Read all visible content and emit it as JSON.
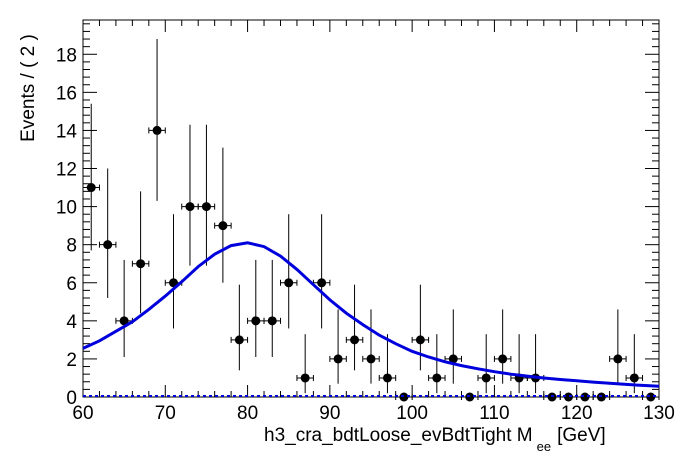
{
  "chart_data": {
    "type": "scatter",
    "title": "",
    "xlabel": "h3_cra_bdtLoose_evBdtTight  M",
    "xlabel_subscript": "ee",
    "xlabel_unit": "[GeV]",
    "ylabel": "Events / ( 2 )",
    "xlim": [
      60,
      130
    ],
    "ylim": [
      0,
      19.8
    ],
    "x_ticks": [
      60,
      70,
      80,
      90,
      100,
      110,
      120,
      130
    ],
    "y_ticks": [
      0,
      2,
      4,
      6,
      8,
      10,
      12,
      14,
      16,
      18
    ],
    "grid": false,
    "legend": "none",
    "series": [
      {
        "kind": "points-with-errors",
        "color": "#000000",
        "x_halfwidth": 1,
        "points": [
          {
            "x": 61,
            "y": 11,
            "lo": 3.3,
            "hi": 4.4
          },
          {
            "x": 63,
            "y": 8,
            "lo": 2.8,
            "hi": 4.0
          },
          {
            "x": 65,
            "y": 4,
            "lo": 1.9,
            "hi": 3.2
          },
          {
            "x": 67,
            "y": 7,
            "lo": 2.6,
            "hi": 3.8
          },
          {
            "x": 69,
            "y": 14,
            "lo": 3.7,
            "hi": 4.8
          },
          {
            "x": 71,
            "y": 6,
            "lo": 2.4,
            "hi": 3.6
          },
          {
            "x": 73,
            "y": 10,
            "lo": 3.1,
            "hi": 4.3
          },
          {
            "x": 75,
            "y": 10,
            "lo": 3.1,
            "hi": 4.3
          },
          {
            "x": 77,
            "y": 9,
            "lo": 3.0,
            "hi": 4.1
          },
          {
            "x": 79,
            "y": 3,
            "lo": 1.6,
            "hi": 2.9
          },
          {
            "x": 81,
            "y": 4,
            "lo": 1.9,
            "hi": 3.2
          },
          {
            "x": 83,
            "y": 4,
            "lo": 1.9,
            "hi": 3.2
          },
          {
            "x": 85,
            "y": 6,
            "lo": 2.4,
            "hi": 3.6
          },
          {
            "x": 87,
            "y": 1,
            "lo": 0.8,
            "hi": 2.3
          },
          {
            "x": 89,
            "y": 6,
            "lo": 2.4,
            "hi": 3.6
          },
          {
            "x": 91,
            "y": 2,
            "lo": 1.3,
            "hi": 2.6
          },
          {
            "x": 93,
            "y": 3,
            "lo": 1.6,
            "hi": 2.9
          },
          {
            "x": 95,
            "y": 2,
            "lo": 1.3,
            "hi": 2.6
          },
          {
            "x": 97,
            "y": 1,
            "lo": 0.8,
            "hi": 2.3
          },
          {
            "x": 99,
            "y": 0,
            "lo": 0,
            "hi": 0
          },
          {
            "x": 101,
            "y": 3,
            "lo": 1.6,
            "hi": 2.9
          },
          {
            "x": 103,
            "y": 1,
            "lo": 0.8,
            "hi": 2.3
          },
          {
            "x": 105,
            "y": 2,
            "lo": 1.3,
            "hi": 2.6
          },
          {
            "x": 107,
            "y": 0,
            "lo": 0,
            "hi": 0
          },
          {
            "x": 109,
            "y": 1,
            "lo": 0.8,
            "hi": 2.3
          },
          {
            "x": 111,
            "y": 2,
            "lo": 1.3,
            "hi": 2.6
          },
          {
            "x": 113,
            "y": 1,
            "lo": 0.8,
            "hi": 2.3
          },
          {
            "x": 115,
            "y": 1,
            "lo": 0.8,
            "hi": 2.3
          },
          {
            "x": 117,
            "y": 0,
            "lo": 0,
            "hi": 0
          },
          {
            "x": 119,
            "y": 0,
            "lo": 0,
            "hi": 0
          },
          {
            "x": 121,
            "y": 0,
            "lo": 0,
            "hi": 0
          },
          {
            "x": 123,
            "y": 0,
            "lo": 0,
            "hi": 0
          },
          {
            "x": 125,
            "y": 2,
            "lo": 1.3,
            "hi": 2.6
          },
          {
            "x": 127,
            "y": 1,
            "lo": 0.8,
            "hi": 2.3
          },
          {
            "x": 129,
            "y": 0,
            "lo": 0,
            "hi": 0
          }
        ]
      },
      {
        "kind": "fit-curve",
        "color": "#0000dd",
        "x": [
          60,
          62,
          64,
          66,
          68,
          70,
          72,
          74,
          76,
          78,
          80,
          82,
          84,
          86,
          88,
          90,
          92,
          94,
          96,
          98,
          100,
          102,
          104,
          106,
          108,
          110,
          112,
          114,
          116,
          118,
          120,
          122,
          124,
          126,
          128,
          130
        ],
        "y": [
          2.55,
          2.95,
          3.45,
          3.95,
          4.6,
          5.3,
          6.05,
          6.85,
          7.5,
          7.95,
          8.1,
          7.9,
          7.4,
          6.7,
          5.9,
          5.1,
          4.4,
          3.8,
          3.25,
          2.8,
          2.4,
          2.1,
          1.85,
          1.65,
          1.48,
          1.33,
          1.2,
          1.1,
          1.0,
          0.92,
          0.85,
          0.78,
          0.72,
          0.66,
          0.61,
          0.56
        ]
      }
    ]
  }
}
